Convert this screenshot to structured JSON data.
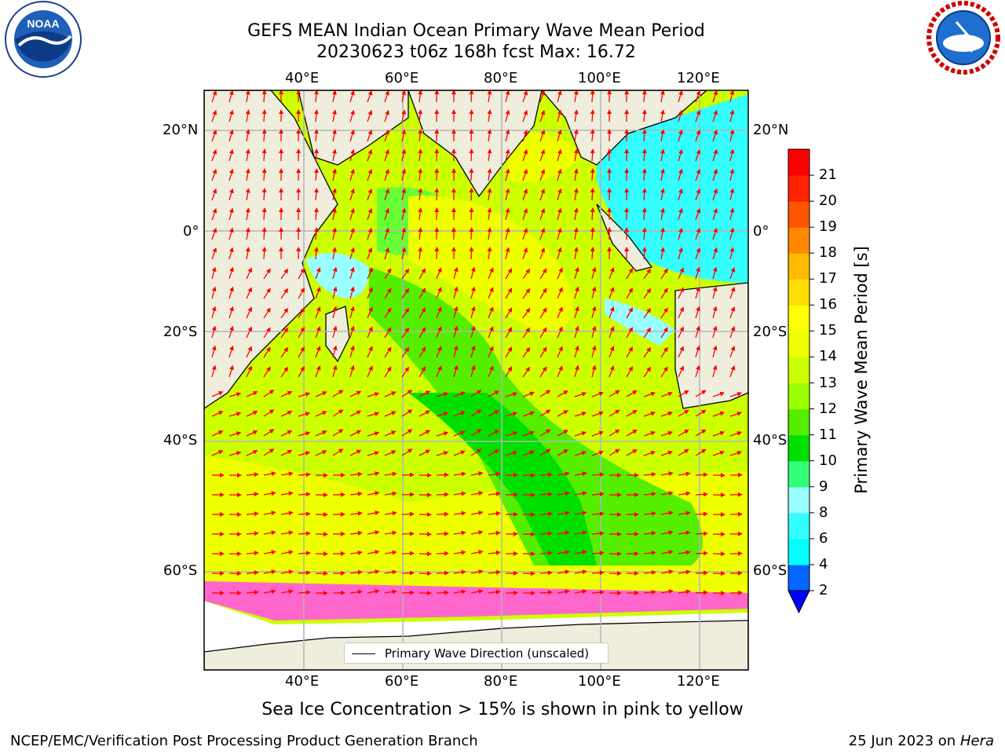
{
  "header": {
    "title_line1": "GEFS MEAN Indian Ocean Primary Wave Mean Period",
    "title_line2": "20230623 t06z 168h fcst   Max: 16.72"
  },
  "logos": {
    "left": {
      "name": "noaa-logo",
      "text": "NOAA",
      "ring_text": "NATIONAL OCEANIC AND ATMOSPHERIC ADMINISTRATION · U.S. DEPARTMENT OF COMMERCE"
    },
    "right": {
      "name": "nws-logo",
      "ring_text": "NATIONAL WEATHER SERVICE"
    }
  },
  "map": {
    "lon_ticks": [
      "40°E",
      "60°E",
      "80°E",
      "100°E",
      "120°E"
    ],
    "lat_ticks": [
      "20°N",
      "0°",
      "20°S",
      "40°S",
      "60°S"
    ],
    "legend_label": "Primary Wave Direction (unscaled)",
    "colors": {
      "land": "#efeedd",
      "arrow": "#ff0000",
      "grid": "#b4b4b4",
      "ice": "#ff66cc"
    }
  },
  "colorbar": {
    "label": "Primary Wave Mean Period [s]",
    "ticks": [
      "2",
      "4",
      "6",
      "8",
      "9",
      "10",
      "11",
      "12",
      "13",
      "14",
      "15",
      "16",
      "17",
      "18",
      "19",
      "20",
      "21"
    ],
    "colors": [
      "#0066ff",
      "#00ffff",
      "#33ffff",
      "#99ffff",
      "#33ff77",
      "#00e000",
      "#55ee00",
      "#99ff00",
      "#ccff00",
      "#eeff00",
      "#ffff00",
      "#ffdd00",
      "#ffbb00",
      "#ff8800",
      "#ff5500",
      "#ff2200",
      "#ff0000"
    ],
    "extend_color": "#0000ff"
  },
  "footer": {
    "note": "Sea Ice Concentration > 15% is shown in pink to yellow",
    "credit_left": "NCEP/EMC/Verification Post Processing Product Generation Branch",
    "credit_right_date": "25 Jun 2023 on",
    "credit_right_host": "Hera"
  }
}
